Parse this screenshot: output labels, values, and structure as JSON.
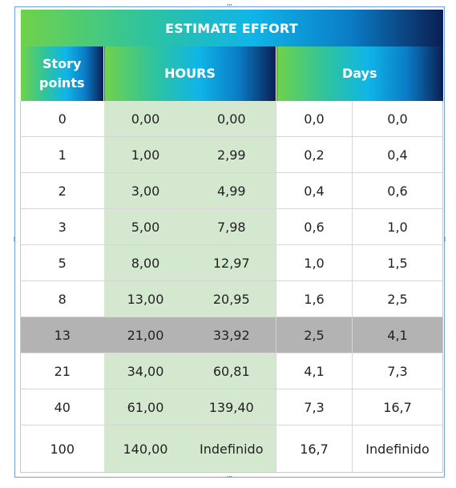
{
  "table": {
    "title": "ESTIMATE EFFORT",
    "headers": {
      "story_points": "Story points",
      "hours": "HOURS",
      "days": "Days"
    },
    "highlighted_row": 6,
    "rows": [
      {
        "sp": "0",
        "h1": "0,00",
        "h2": "0,00",
        "d1": "0,0",
        "d2": "0,0"
      },
      {
        "sp": "1",
        "h1": "1,00",
        "h2": "2,99",
        "d1": "0,2",
        "d2": "0,4"
      },
      {
        "sp": "2",
        "h1": "3,00",
        "h2": "4,99",
        "d1": "0,4",
        "d2": "0,6"
      },
      {
        "sp": "3",
        "h1": "5,00",
        "h2": "7,98",
        "d1": "0,6",
        "d2": "1,0"
      },
      {
        "sp": "5",
        "h1": "8,00",
        "h2": "12,97",
        "d1": "1,0",
        "d2": "1,5"
      },
      {
        "sp": "8",
        "h1": "13,00",
        "h2": "20,95",
        "d1": "1,6",
        "d2": "2,5"
      },
      {
        "sp": "13",
        "h1": "21,00",
        "h2": "33,92",
        "d1": "2,5",
        "d2": "4,1"
      },
      {
        "sp": "21",
        "h1": "34,00",
        "h2": "60,81",
        "d1": "4,1",
        "d2": "7,3"
      },
      {
        "sp": "40",
        "h1": "61,00",
        "h2": "139,40",
        "d1": "7,3",
        "d2": "16,7"
      },
      {
        "sp": "100",
        "h1": "140,00",
        "h2": "Indefinido",
        "d1": "16,7",
        "d2": "Indefinido"
      }
    ]
  },
  "colors": {
    "gradient_start": "#6fd24a",
    "gradient_mid": "#0fb5e8",
    "gradient_end": "#0b1e52",
    "hours_fill": "#d4e8cf",
    "highlight_row": "#b3b3b3",
    "selection_frame": "#6fa0dc"
  }
}
